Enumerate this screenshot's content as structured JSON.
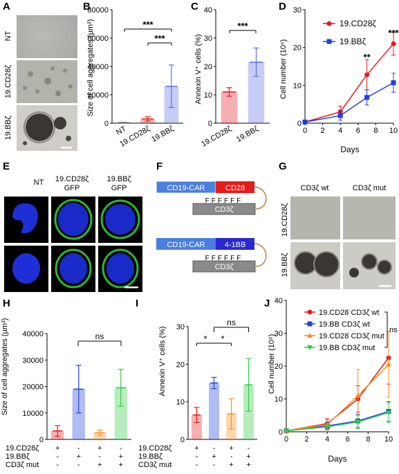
{
  "panel_labels": [
    "A",
    "B",
    "C",
    "D",
    "E",
    "F",
    "G",
    "H",
    "I",
    "J"
  ],
  "panelA": {
    "rows": [
      "NT",
      "19.CD28ζ",
      "19.BBζ"
    ]
  },
  "chart_data": [
    {
      "panel": "B",
      "type": "bar",
      "categories": [
        "NT",
        "19.CD28ζ",
        "19.BBζ"
      ],
      "values": [
        300,
        3000,
        26000
      ],
      "errors": [
        200,
        1500,
        15000
      ],
      "ylabel": "Size of cell aggregates (µm²)",
      "ylim": [
        0,
        80000
      ],
      "yticks": [
        "0",
        "20000",
        "40000",
        "60000",
        "80000"
      ],
      "colors": [
        "#555555",
        "#e41a1c",
        "#5b6ee1"
      ],
      "significance": [
        "***",
        "***"
      ]
    },
    {
      "panel": "C",
      "type": "bar",
      "categories": [
        "19.CD28ζ",
        "19.BBζ"
      ],
      "values": [
        11,
        21.5
      ],
      "errors": [
        1.5,
        5
      ],
      "ylabel": "Annexin V⁺ cells (%)",
      "ylim": [
        0,
        40
      ],
      "yticks": [
        "0",
        "10",
        "20",
        "30",
        "40"
      ],
      "colors": [
        "#e41a1c",
        "#5b6ee1"
      ],
      "significance": [
        "***"
      ]
    },
    {
      "panel": "D",
      "type": "line",
      "x": [
        0,
        4,
        7,
        10
      ],
      "series": [
        {
          "name": "19.CD28ζ",
          "values": [
            0.3,
            3,
            12.8,
            21
          ],
          "errors": [
            0.2,
            1.5,
            4,
            3
          ],
          "color": "#e41a1c"
        },
        {
          "name": "19.BBζ",
          "values": [
            0.3,
            2,
            6.8,
            10.7
          ],
          "errors": [
            0.2,
            1.2,
            2,
            2.5
          ],
          "color": "#1f3fe0"
        }
      ],
      "xlabel": "Days",
      "ylabel": "Cell number (10⁶)",
      "xticks": [
        "0",
        "2",
        "4",
        "6",
        "8",
        "10"
      ],
      "yticks": [
        "0",
        "10",
        "20",
        "30"
      ],
      "ylim": [
        0,
        30
      ],
      "significance": [
        "**",
        "***"
      ]
    },
    {
      "panel": "H",
      "type": "bar",
      "categories": [
        "19.CD28ζ",
        "19.BBζ",
        "19.CD28ζ CD3ζ mut",
        "19.BBζ CD3ζ mut"
      ],
      "values": [
        3200,
        19000,
        2500,
        19500
      ],
      "errors": [
        2000,
        9000,
        1000,
        7000
      ],
      "ylabel": "Size of cell aggregates (µm²)",
      "ylim": [
        0,
        40000
      ],
      "yticks": [
        "0",
        "10000",
        "20000",
        "30000",
        "40000"
      ],
      "colors": [
        "#e41a1c",
        "#1f3fe0",
        "#ff8c1a",
        "#2ecc40"
      ],
      "significance": [
        "ns"
      ]
    },
    {
      "panel": "I",
      "type": "bar",
      "categories": [
        "19.CD28ζ",
        "19.BBζ",
        "19.CD28ζ CD3ζ mut",
        "19.BBζ CD3ζ mut"
      ],
      "values": [
        6.5,
        15,
        6.8,
        14.5
      ],
      "errors": [
        2,
        1.5,
        4,
        7
      ],
      "ylabel": "Annexin V⁺ cells (%)",
      "ylim": [
        0,
        30
      ],
      "yticks": [
        "0",
        "10",
        "20",
        "30"
      ],
      "colors": [
        "#e41a1c",
        "#1f3fe0",
        "#ff8c1a",
        "#2ecc40"
      ],
      "significance": [
        "*",
        "*",
        "ns"
      ]
    },
    {
      "panel": "J",
      "type": "line",
      "x": [
        0,
        4,
        7,
        10
      ],
      "series": [
        {
          "name": "19.CD28 CD3ζ wt",
          "values": [
            0.3,
            2.5,
            10,
            22.5
          ],
          "errors": [
            0.2,
            1.5,
            4,
            8
          ],
          "color": "#e41a1c"
        },
        {
          "name": "19.BB CD3ζ wt",
          "values": [
            0.3,
            1.8,
            3.3,
            6.2
          ],
          "errors": [
            0.2,
            1,
            2,
            3
          ],
          "color": "#1f3fe0"
        },
        {
          "name": "19.CD28 CD3ζ mut",
          "values": [
            0.3,
            2.2,
            11,
            20.5
          ],
          "errors": [
            0.2,
            1.5,
            8,
            10
          ],
          "color": "#ff8c1a"
        },
        {
          "name": "19.BB CD3ζ mut",
          "values": [
            0.3,
            1.5,
            3,
            5.8
          ],
          "errors": [
            0.2,
            1,
            2,
            3
          ],
          "color": "#2ecc40"
        }
      ],
      "xlabel": "Days",
      "ylabel": "Cell number (10⁶)",
      "xticks": [
        "0",
        "2",
        "4",
        "6",
        "8",
        "10"
      ],
      "yticks": [
        "0",
        "10",
        "20",
        "30",
        "40"
      ],
      "ylim": [
        0,
        40
      ],
      "significance": [
        "ns"
      ]
    }
  ],
  "panelE": {
    "cols": [
      "NT",
      "19.CD28ζ\nGFP",
      "19.BBζ\nGFP"
    ],
    "col1": "NT",
    "col2a": "19.CD28ζ",
    "col2b": "GFP",
    "col3a": "19.BBζ",
    "col3b": "GFP"
  },
  "panelF": {
    "car_label": "CD19-CAR",
    "cd28_label": "CD28",
    "bb_label": "4-1BB",
    "cd3_label": "CD3ζ",
    "mut_marks": "FFFFFF"
  },
  "panelG": {
    "col_wt": "CD3ζ wt",
    "col_mut": "CD3ζ mut",
    "row1": "19.CD28ζ",
    "row2": "19.BBζ"
  },
  "tableH": {
    "rows": [
      {
        "label": "19.CD28ζ",
        "vals": [
          "+",
          "-",
          "+",
          "-"
        ]
      },
      {
        "label": "19.BBζ",
        "vals": [
          "-",
          "+",
          "-",
          "+"
        ]
      },
      {
        "label": "CD3ζ mut",
        "vals": [
          "-",
          "-",
          "+",
          "+"
        ]
      }
    ]
  },
  "tableI": {
    "rows": [
      {
        "label": "19.CD28ζ",
        "vals": [
          "+",
          "-",
          "+",
          "-"
        ]
      },
      {
        "label": "19.BBζ",
        "vals": [
          "-",
          "+",
          "-",
          "+"
        ]
      },
      {
        "label": "CD3ζ mut",
        "vals": [
          "-",
          "-",
          "+",
          "+"
        ]
      }
    ]
  }
}
